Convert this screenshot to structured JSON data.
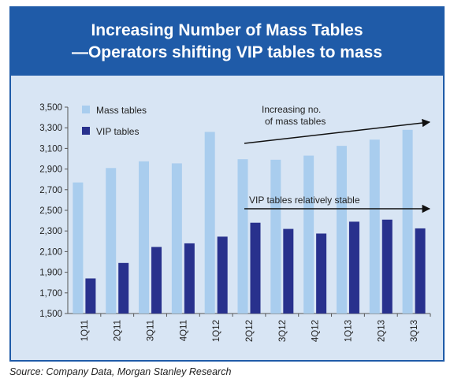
{
  "title_line1": "Increasing Number of Mass Tables",
  "title_line2": "—Operators shifting VIP tables to mass",
  "source": "Source: Company Data, Morgan Stanley Research",
  "colors": {
    "banner": "#1f5ba8",
    "mass": "#a9cdee",
    "vip": "#28318d",
    "plot_bg": "#d8e5f4"
  },
  "chart_data": {
    "type": "bar",
    "categories": [
      "1Q11",
      "2Q11",
      "3Q11",
      "4Q11",
      "1Q12",
      "2Q12",
      "3Q12",
      "4Q12",
      "1Q13",
      "2Q13",
      "3Q13"
    ],
    "series": [
      {
        "name": "Mass tables",
        "values": [
          2770,
          2910,
          2975,
          2955,
          3260,
          2995,
          2990,
          3030,
          3125,
          3185,
          3280
        ]
      },
      {
        "name": "VIP tables",
        "values": [
          1840,
          1990,
          2145,
          2180,
          2245,
          2380,
          2320,
          2275,
          2390,
          2410,
          2325
        ]
      }
    ],
    "ylim": [
      1500,
      3500
    ],
    "yticks": [
      "1,500",
      "1,700",
      "1,900",
      "2,100",
      "2,300",
      "2,500",
      "2,700",
      "2,900",
      "3,100",
      "3,300",
      "3,500"
    ],
    "legend_position": "top-left",
    "annotations": [
      {
        "text_lines": [
          "Increasing no.",
          "of mass tables"
        ]
      },
      {
        "text_lines": [
          "VIP tables relatively stable"
        ]
      }
    ]
  }
}
